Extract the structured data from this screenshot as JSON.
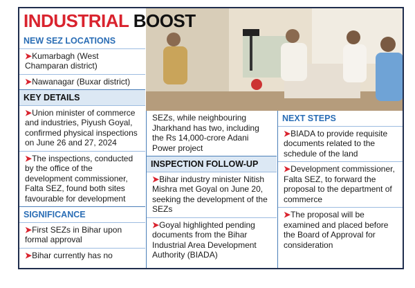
{
  "title": {
    "red": "INDUSTRIAL",
    "black": "BOOST"
  },
  "sections": [
    {
      "heading": "NEW SEZ LOCATIONS",
      "items": [
        "Kumarbagh (West Champaran district)",
        "Nawanagar (Buxar district)"
      ]
    },
    {
      "heading": "KEY DETAILS",
      "items": [
        "Union minister of commerce and industries, Piyush Goyal, confirmed physical inspections on June 26 and 27, 2024",
        "The inspections, conducted by the office of the development commissioner, Falta SEZ, found both sites favourable for development"
      ]
    },
    {
      "heading": "SIGNIFICANCE",
      "items": [
        "First SEZs in Bihar upon formal approval",
        "Bihar currently has no"
      ]
    },
    {
      "heading": "INSPECTION FOLLOW-UP",
      "items": [
        "Bihar industry minister Nitish Mishra met Goyal on June 20, seeking the development of the SEZs",
        "Goyal highlighted pending documents from the Bihar Industrial Area Development Authority (BIADA)"
      ]
    },
    {
      "heading": "NEXT STEPS",
      "items": [
        "BIADA to provide requisite documents related to the schedule of the land",
        "Development commissioner, Falta SEZ, to forward the proposal to the department of commerce",
        "The proposal will be examined and placed before the Board of Approval for consideration"
      ]
    }
  ],
  "continuation": "SEZs, while neighbouring Jharkhand has two, including the Rs 14,000-crore Adani Power project"
}
